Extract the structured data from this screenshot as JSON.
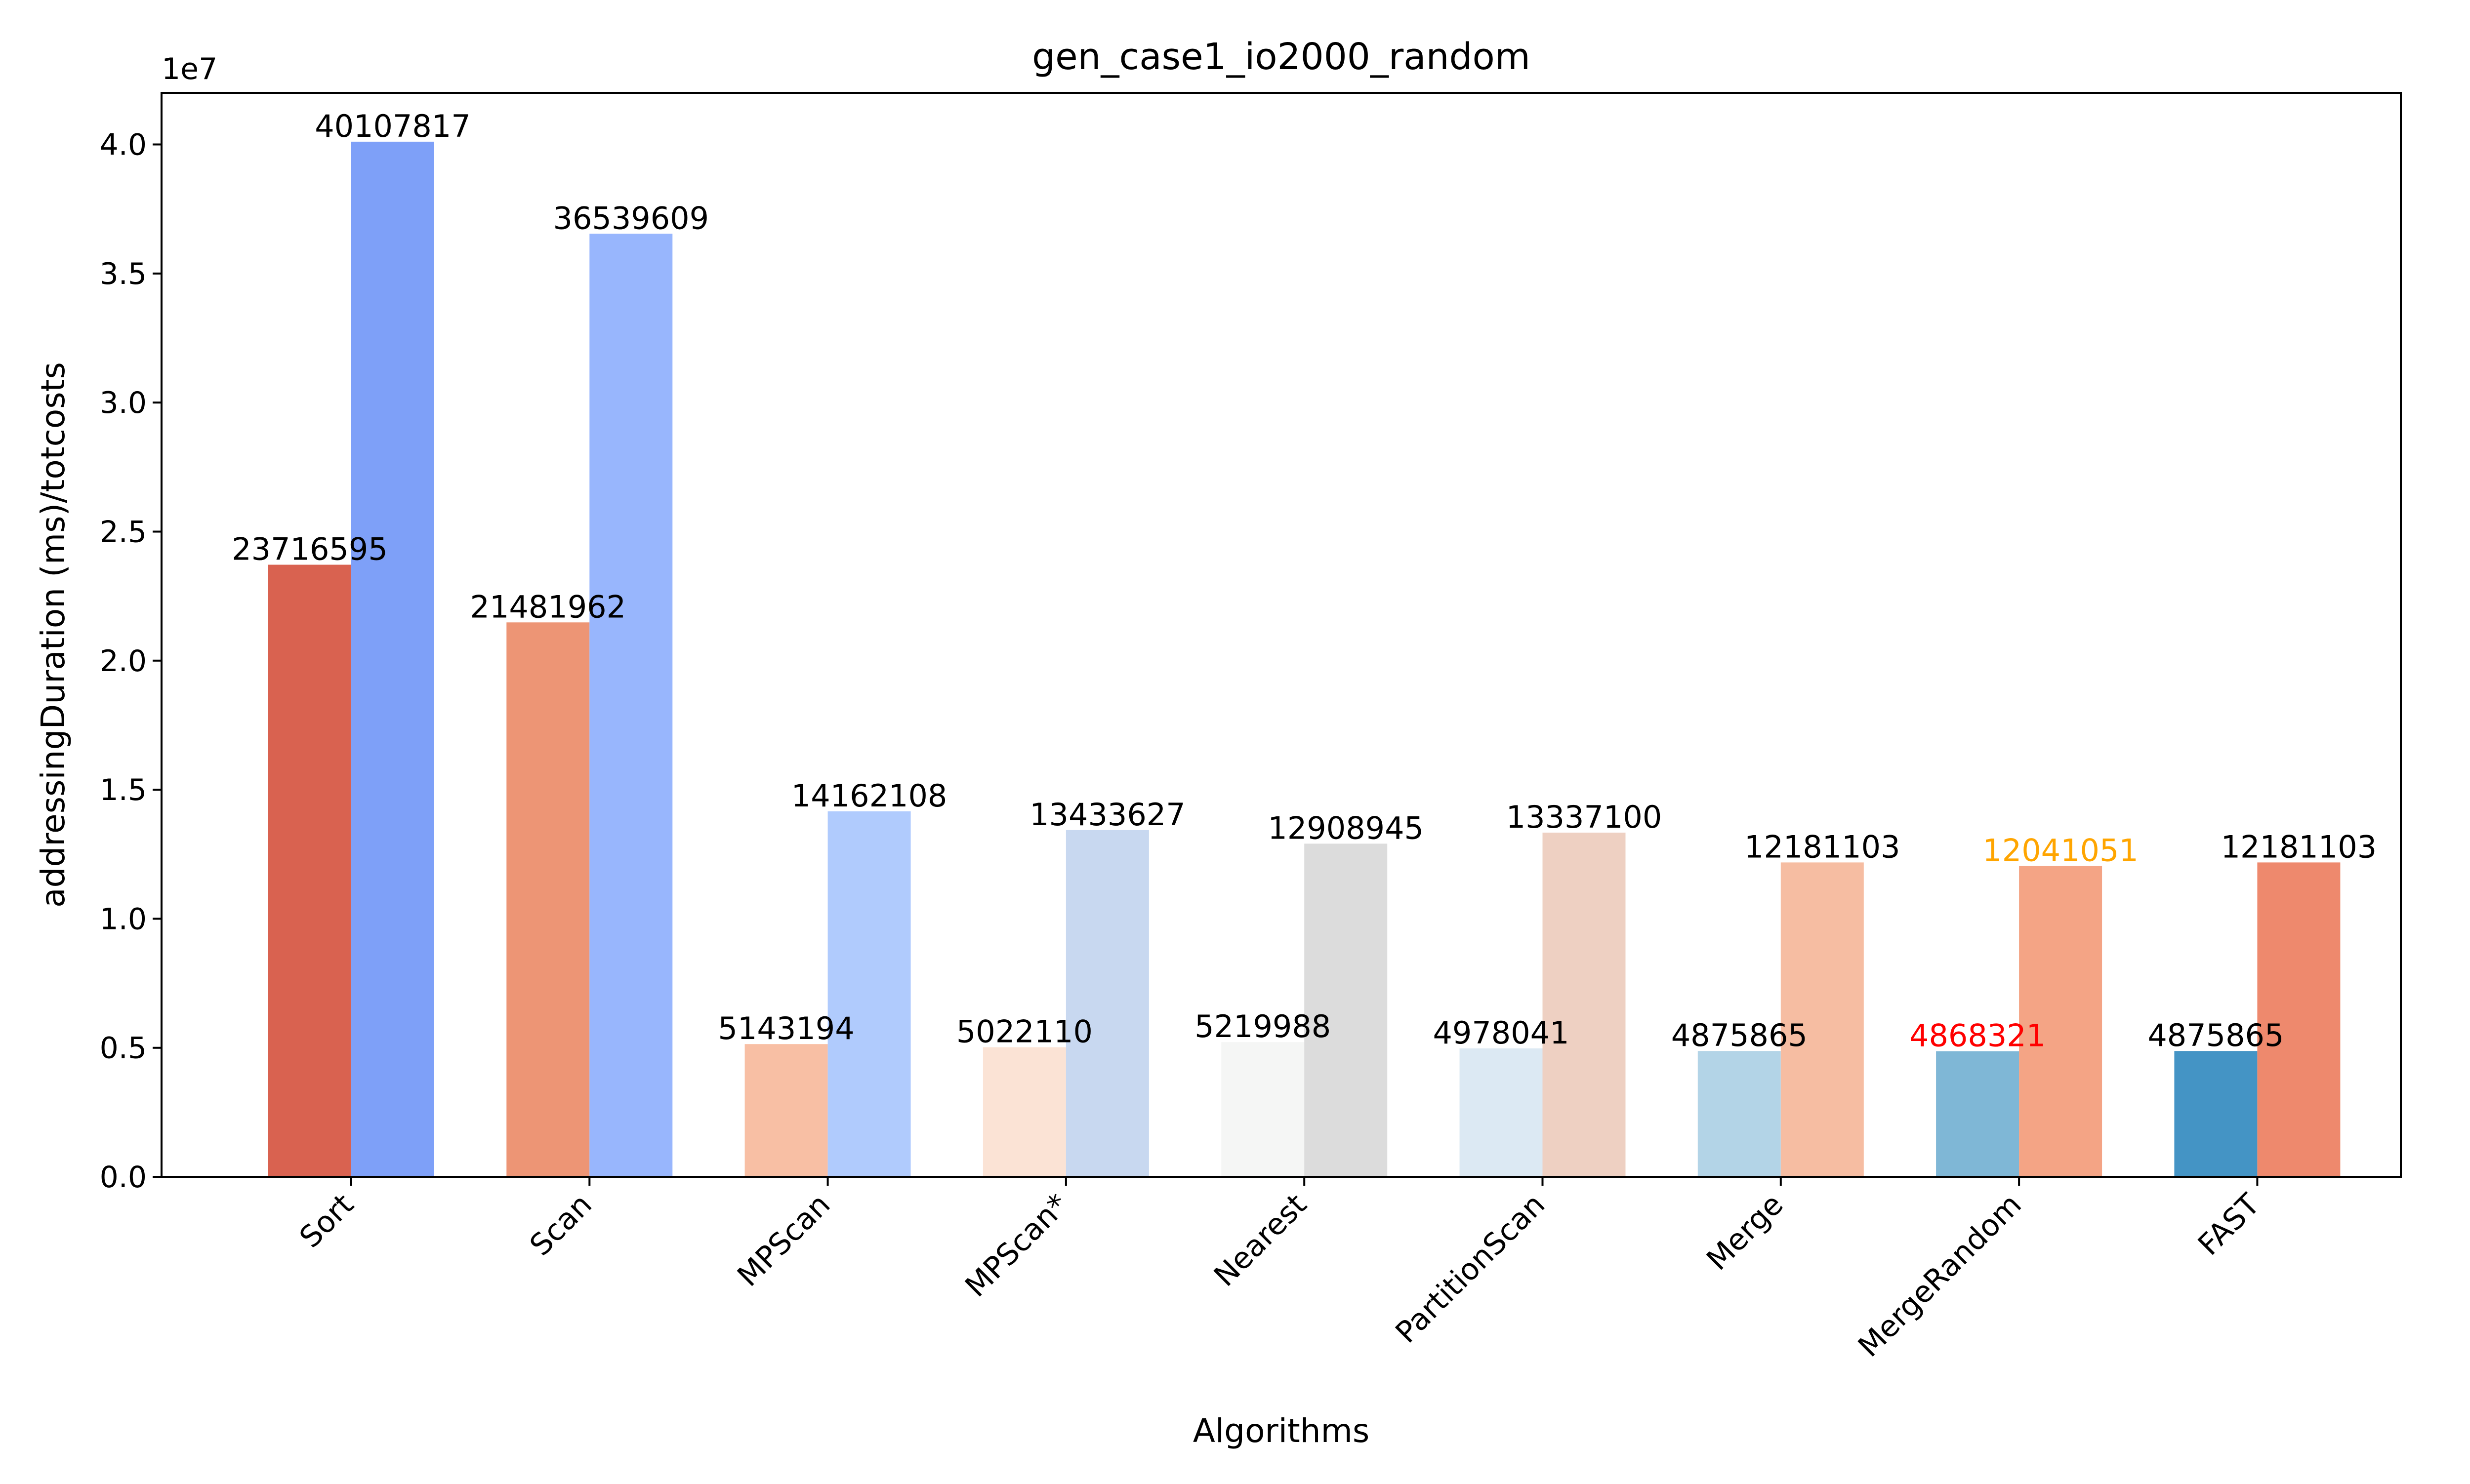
{
  "chart_data": {
    "type": "bar",
    "title": "gen_case1_io2000_random",
    "xlabel": "Algorithms",
    "ylabel": "addressingDuration (ms)/totcosts",
    "y_offset_label": "1e7",
    "ylim": [
      0,
      42000000
    ],
    "y_ticks": [
      0,
      5000000,
      10000000,
      15000000,
      20000000,
      25000000,
      30000000,
      35000000,
      40000000
    ],
    "y_tick_labels": [
      "0.0",
      "0.5",
      "1.0",
      "1.5",
      "2.0",
      "2.5",
      "3.0",
      "3.5",
      "4.0"
    ],
    "categories": [
      "Sort",
      "Scan",
      "MPScan",
      "MPScan*",
      "Nearest",
      "PartitionScan",
      "Merge",
      "MergeRandom",
      "FAST"
    ],
    "series": [
      {
        "values": [
          23716595,
          21481962,
          5143194,
          5022110,
          5219988,
          4978041,
          4875865,
          4868321,
          4875865
        ],
        "value_labels": [
          "23716595",
          "21481962",
          "5143194",
          "5022110",
          "5219988",
          "4978041",
          "4875865",
          "4868321",
          "4875865"
        ],
        "colors": [
          "#d96250",
          "#ed9575",
          "#f8bfa4",
          "#fbe3d5",
          "#f5f6f5",
          "#dce9f3",
          "#b3d4e7",
          "#7fb7d6",
          "#4494c5"
        ],
        "label_colors": [
          "#000000",
          "#000000",
          "#000000",
          "#000000",
          "#000000",
          "#000000",
          "#000000",
          "#ff0000",
          "#000000"
        ]
      },
      {
        "values": [
          40107817,
          36539609,
          14162108,
          13433627,
          12908945,
          13337100,
          12181103,
          12041051,
          12181103
        ],
        "value_labels": [
          "40107817",
          "36539609",
          "14162108",
          "13433627",
          "12908945",
          "13337100",
          "12181103",
          "12041051",
          "12181103"
        ],
        "colors": [
          "#7ea0f8",
          "#98b6fd",
          "#b0cbfd",
          "#c8d8f0",
          "#dcdcdc",
          "#eed0c2",
          "#f6bda2",
          "#f4a485",
          "#ee896d"
        ],
        "label_colors": [
          "#000000",
          "#000000",
          "#000000",
          "#000000",
          "#000000",
          "#000000",
          "#000000",
          "#ffa500",
          "#000000"
        ]
      }
    ],
    "grid": false,
    "legend": "none"
  }
}
